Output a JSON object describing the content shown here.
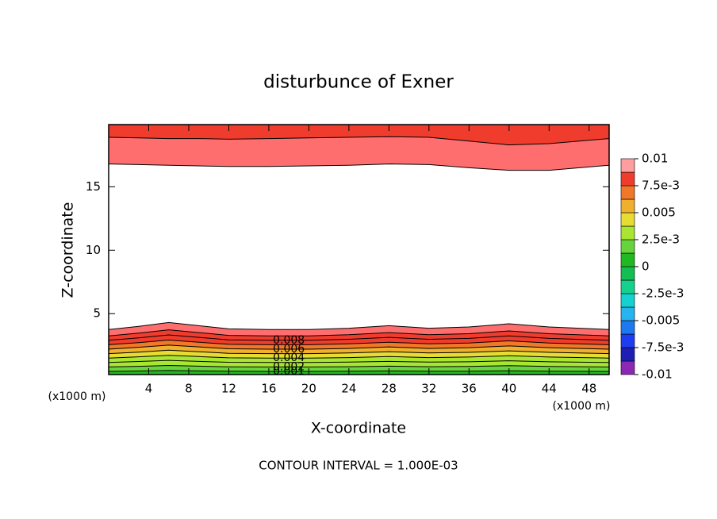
{
  "chart_data": {
    "type": "contour",
    "title": "disturbunce of Exner",
    "xlabel": "X-coordinate",
    "ylabel": "Z-coordinate",
    "x_unit": "(x1000 m)",
    "note": "CONTOUR INTERVAL = 1.000E-03",
    "xlim": [
      0,
      50
    ],
    "ylim": [
      0.2,
      19.9
    ],
    "xticks": [
      4,
      8,
      12,
      16,
      20,
      24,
      28,
      32,
      36,
      40,
      44,
      48
    ],
    "yticks": [
      5,
      10,
      15
    ],
    "x": [
      0,
      3,
      6,
      9,
      12,
      16,
      20,
      24,
      28,
      32,
      36,
      40,
      44,
      50
    ],
    "groups": [
      {
        "contours": [
          {
            "level": 0.001,
            "labeled": true,
            "z": [
              0.45,
              0.48,
              0.52,
              0.49,
              0.46,
              0.45,
              0.45,
              0.46,
              0.49,
              0.46,
              0.47,
              0.5,
              0.47,
              0.45
            ]
          },
          {
            "level": 0.002,
            "labeled": true,
            "z": [
              0.8,
              0.85,
              0.92,
              0.86,
              0.81,
              0.8,
              0.8,
              0.82,
              0.86,
              0.82,
              0.84,
              0.9,
              0.84,
              0.8
            ]
          },
          {
            "level": 0.003,
            "labeled": false,
            "z": [
              1.15,
              1.23,
              1.32,
              1.24,
              1.17,
              1.15,
              1.15,
              1.18,
              1.24,
              1.18,
              1.21,
              1.29,
              1.21,
              1.15
            ]
          },
          {
            "level": 0.004,
            "labeled": true,
            "z": [
              1.5,
              1.6,
              1.72,
              1.62,
              1.52,
              1.5,
              1.5,
              1.54,
              1.62,
              1.54,
              1.58,
              1.68,
              1.58,
              1.5
            ]
          },
          {
            "level": 0.005,
            "labeled": false,
            "z": [
              1.85,
              1.97,
              2.12,
              2.0,
              1.87,
              1.85,
              1.85,
              1.9,
              2.0,
              1.9,
              1.95,
              2.07,
              1.95,
              1.85
            ]
          },
          {
            "level": 0.006,
            "labeled": true,
            "z": [
              2.2,
              2.35,
              2.52,
              2.38,
              2.23,
              2.2,
              2.2,
              2.26,
              2.38,
              2.26,
              2.32,
              2.46,
              2.32,
              2.2
            ]
          },
          {
            "level": 0.007,
            "labeled": false,
            "z": [
              2.55,
              2.72,
              2.92,
              2.75,
              2.58,
              2.55,
              2.55,
              2.62,
              2.75,
              2.62,
              2.69,
              2.86,
              2.69,
              2.55
            ]
          },
          {
            "level": 0.008,
            "labeled": true,
            "z": [
              2.9,
              3.09,
              3.33,
              3.13,
              2.94,
              2.9,
              2.9,
              2.98,
              3.13,
              2.98,
              3.05,
              3.25,
              3.05,
              2.9
            ]
          },
          {
            "level": 0.009,
            "labeled": false,
            "z": [
              3.25,
              3.47,
              3.73,
              3.51,
              3.29,
              3.25,
              3.25,
              3.34,
              3.51,
              3.34,
              3.42,
              3.64,
              3.42,
              3.25
            ]
          },
          {
            "level": 0.01,
            "labeled": false,
            "z": [
              3.75,
              4.0,
              4.3,
              4.05,
              3.8,
              3.75,
              3.75,
              3.85,
              4.05,
              3.85,
              3.95,
              4.2,
              3.95,
              3.75
            ]
          }
        ]
      },
      {
        "contours": [
          {
            "level": 0.01,
            "labeled": false,
            "z": [
              16.8,
              16.75,
              16.7,
              16.65,
              16.6,
              16.6,
              16.65,
              16.7,
              16.8,
              16.75,
              16.5,
              16.3,
              16.3,
              16.7
            ]
          },
          {
            "level": 0.009,
            "labeled": false,
            "z": [
              18.9,
              18.85,
              18.8,
              18.8,
              18.75,
              18.8,
              18.85,
              18.9,
              18.95,
              18.9,
              18.6,
              18.3,
              18.4,
              18.8
            ]
          }
        ]
      }
    ],
    "colorbar": {
      "lim": [
        -0.01,
        0.01
      ],
      "colors": [
        "#8c28b4",
        "#1e1eb4",
        "#1e3cf0",
        "#1e78f0",
        "#28b4f0",
        "#14d2d2",
        "#14d28c",
        "#14be50",
        "#22b822",
        "#66d43a",
        "#a8e632",
        "#e6dc32",
        "#f0af2d",
        "#f07828",
        "#f03c2d",
        "#ff6e6e",
        "#ff9e9e"
      ],
      "ticks": [
        0.01,
        {
          "value": 0.0075,
          "label": "7.5e-3"
        },
        0.005,
        {
          "value": 0.0025,
          "label": "2.5e-3"
        },
        0,
        {
          "value": -0.0025,
          "label": "-2.5e-3"
        },
        -0.005,
        {
          "value": -0.0075,
          "label": "-7.5e-3"
        },
        -0.01
      ]
    }
  }
}
